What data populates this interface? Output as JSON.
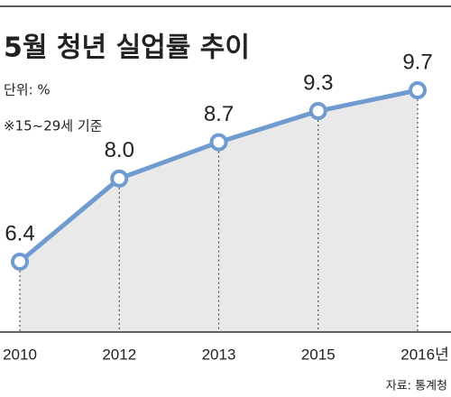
{
  "chart_data": {
    "type": "line",
    "title": "5월 청년 실업률 추이",
    "unit": "단위: %",
    "note": "※15~29세 기준",
    "source": "자료: 통계청",
    "categories": [
      "2010",
      "2012",
      "2013",
      "2015",
      "2016년"
    ],
    "values": [
      6.4,
      8.0,
      8.7,
      9.3,
      9.7
    ],
    "value_labels": [
      "6.4",
      "8.0",
      "8.7",
      "9.3",
      "9.7"
    ],
    "color": "#6f9bd0",
    "area_color": "#e9e9ea"
  }
}
